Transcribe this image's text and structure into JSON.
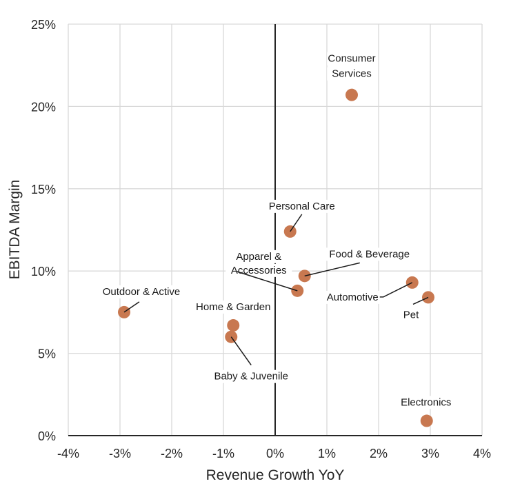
{
  "chart_data": {
    "type": "scatter",
    "title": "",
    "xlabel": "Revenue Growth YoY",
    "ylabel": "EBITDA Margin",
    "xlim": [
      -4,
      4
    ],
    "ylim": [
      0,
      25
    ],
    "x_ticks": [
      -4,
      -3,
      -2,
      -1,
      0,
      1,
      2,
      3,
      4
    ],
    "y_ticks": [
      0,
      5,
      10,
      15,
      20,
      25
    ],
    "x_tick_labels": [
      "-4%",
      "-3%",
      "-2%",
      "-1%",
      "0%",
      "1%",
      "2%",
      "3%",
      "4%"
    ],
    "y_tick_labels": [
      "0%",
      "5%",
      "10%",
      "15%",
      "20%",
      "25%"
    ],
    "grid": true,
    "legend": "none",
    "marker_color": "#c87850",
    "points": [
      {
        "name": "Consumer Services",
        "x": 1.48,
        "y": 20.7
      },
      {
        "name": "Personal Care",
        "x": 0.29,
        "y": 12.4
      },
      {
        "name": "Food & Beverage",
        "x": 0.57,
        "y": 9.7
      },
      {
        "name": "Apparel & Accessories",
        "x": 0.43,
        "y": 8.8
      },
      {
        "name": "Automotive",
        "x": 2.65,
        "y": 9.3
      },
      {
        "name": "Pet",
        "x": 2.96,
        "y": 8.4
      },
      {
        "name": "Outdoor & Active",
        "x": -2.92,
        "y": 7.5
      },
      {
        "name": "Home & Garden",
        "x": -0.81,
        "y": 6.7
      },
      {
        "name": "Baby & Juvenile",
        "x": -0.85,
        "y": 6.0
      },
      {
        "name": "Electronics",
        "x": 2.93,
        "y": 0.9
      }
    ]
  }
}
